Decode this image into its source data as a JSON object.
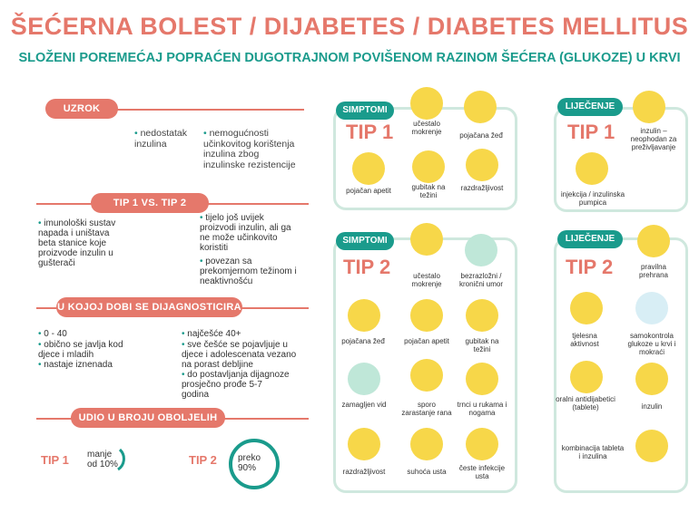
{
  "header": {
    "title": "ŠEĆERNA BOLEST / DIJABETES / DIABETES MELLITUS",
    "subtitle": "SLOŽENI POREMEĆAJ POPRAĆEN DUGOTRAJNOM POVIŠENOM RAZINOM ŠEĆERA (GLUKOZE) U KRVI"
  },
  "uzrok": {
    "label": "UZROK",
    "left": "nedostatak inzulina",
    "right": "nemogućnosti učinkovitog korištenja inzulina zbog inzulinske rezistencije"
  },
  "tip_vs": {
    "label": "TIP 1 VS. TIP 2",
    "left": "imunološki sustav napada i uništava beta stanice koje proizvode inzulin u gušterači",
    "right1": "tijelo još uvijek proizvodi inzulin, ali ga ne može učinkovito koristiti",
    "right2": "povezan sa prekomjernom težinom i neaktivnošću"
  },
  "dob": {
    "label": "U KOJOJ DOBI SE DIJAGNOSTICIRA",
    "left": [
      "0 - 40",
      "obično se javlja kod djece i mladih",
      "nastaje iznenada"
    ],
    "right": [
      "najčešće 40+",
      "sve češće se pojavljuje u djece i adolescenata vezano na porast debljine",
      "do postavljanja dijagnoze prosječno prođe 5-7 godina"
    ]
  },
  "udio": {
    "label": "UDIO U BROJU OBOLJELIH",
    "tip1": "TIP 1",
    "tip1_value": "manje od 10%",
    "tip2": "TIP 2",
    "tip2_value": "preko 90%"
  },
  "simptomi1": {
    "label": "SIMPTOMI",
    "tip": "TIP 1",
    "items": [
      "učestalo mokrenje",
      "pojačana žeđ",
      "pojačan apetit",
      "gubitak na težini",
      "razdražljivost"
    ]
  },
  "simptomi2": {
    "label": "SIMPTOMI",
    "tip": "TIP 2",
    "items": [
      "učestalo mokrenje",
      "bezrazložni / kronični umor",
      "pojačana žeđ",
      "pojačan apetit",
      "gubitak na težini",
      "zamagljen vid",
      "sporo zarastanje rana",
      "trnci u rukama i nogama",
      "razdražljivost",
      "suhoća usta",
      "česte infekcije usta"
    ]
  },
  "lijecenje1": {
    "label": "LIJEČENJE",
    "tip": "TIP 1",
    "items": [
      "inzulin – neophodan za preživljavanje",
      "injekcija / inzulinska pumpica"
    ]
  },
  "lijecenje2": {
    "label": "LIJEČENJE",
    "tip": "TIP 2",
    "items": [
      "pravilna prehrana",
      "tjelesna aktivnost",
      "samokontrola glukoze u krvi i mokraći",
      "oralni antidijabetici (tablete)",
      "inzulin",
      "kombinacija tableta i inzulina"
    ]
  },
  "colors": {
    "coral": "#e5786b",
    "teal": "#1a9b8c",
    "panel": "#cfe8de",
    "yellow": "#f7d749"
  }
}
